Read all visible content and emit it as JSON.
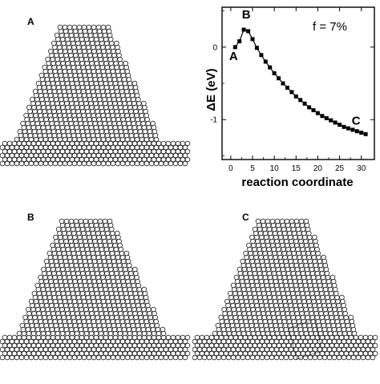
{
  "panels": [
    {
      "id": "A",
      "label": "A",
      "defect": false
    },
    {
      "id": "B",
      "label": "B",
      "defect": false
    },
    {
      "id": "C",
      "label": "C",
      "defect": true
    }
  ],
  "chart_data": {
    "type": "line",
    "annotation": "f = 7%",
    "xlabel": "reaction coordinate",
    "ylabel": "ΔE (eV)",
    "xlim": [
      -2,
      33
    ],
    "ylim": [
      -1.55,
      0.55
    ],
    "xticks": [
      0,
      5,
      10,
      15,
      20,
      25,
      30
    ],
    "yticks": [
      0,
      -1
    ],
    "ytick_labels": [
      "0",
      "-1"
    ],
    "grid": false,
    "series": [
      {
        "x": [
          1,
          2,
          3,
          4,
          5,
          6,
          7,
          8,
          9,
          10,
          11,
          12,
          13,
          14,
          15,
          16,
          17,
          18,
          19,
          20,
          21,
          22,
          23,
          24,
          25,
          26,
          27,
          28,
          29,
          30,
          31
        ],
        "y": [
          0.0,
          0.08,
          0.24,
          0.22,
          0.11,
          -0.01,
          -0.11,
          -0.2,
          -0.28,
          -0.36,
          -0.43,
          -0.5,
          -0.56,
          -0.62,
          -0.68,
          -0.73,
          -0.78,
          -0.83,
          -0.87,
          -0.91,
          -0.95,
          -0.98,
          -1.01,
          -1.04,
          -1.07,
          -1.1,
          -1.12,
          -1.14,
          -1.16,
          -1.18,
          -1.2
        ]
      }
    ],
    "point_labels": [
      {
        "text": "A",
        "x": 1,
        "y": 0.0
      },
      {
        "text": "B",
        "x": 3,
        "y": 0.24
      },
      {
        "text": "C",
        "x": 31,
        "y": -1.2
      }
    ]
  }
}
